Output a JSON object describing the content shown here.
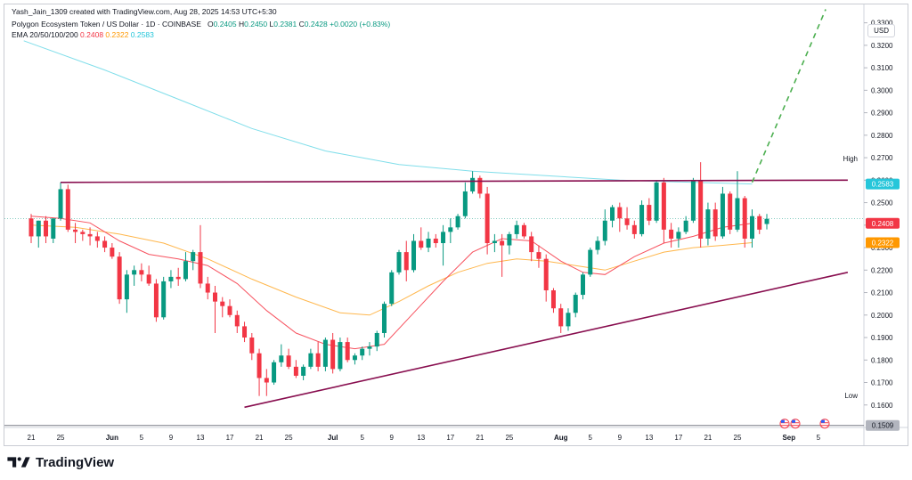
{
  "header": {
    "credit": "Yash_Jain_1309 created with TradingView.com, Aug 28, 2025 14:53 UTC+5:30",
    "symbol": "Polygon Ecosystem Token / US Dollar · 1D · COINBASE",
    "ohlc": {
      "o_label": "O",
      "o": "0.2405",
      "h_label": "H",
      "h": "0.2450",
      "l_label": "L",
      "l": "0.2381",
      "c_label": "C",
      "c": "0.2428",
      "chg": "+0.0020 (+0.83%)"
    },
    "ema_label": "EMA 20/50/100/200",
    "ema_values": [
      "0.2408",
      "0.2322",
      "0.2583"
    ]
  },
  "price_axis": {
    "currency": "USD",
    "high_label": "High",
    "low_label": "Low",
    "badges": [
      {
        "value": "0.2583",
        "color": "#26c6da"
      },
      {
        "value": "0.2408",
        "color": "#f23645"
      },
      {
        "value": "0.2322",
        "color": "#ff9800"
      },
      {
        "value": "0.1509",
        "color": "#b2b5be"
      }
    ]
  },
  "footer": {
    "brand": "TradingView"
  },
  "colors": {
    "up": "#089981",
    "down": "#f23645",
    "ema20": "#f7525f",
    "ema50": "#ffb74d",
    "ema200": "#80deea",
    "trend": "#880e4f",
    "projection": "#4caf50"
  },
  "chart_data": {
    "type": "candlestick",
    "title": "Polygon Ecosystem Token / US Dollar · 1D · COINBASE",
    "y_ticks": [
      "0.3300",
      "0.3200",
      "0.3100",
      "0.3000",
      "0.2900",
      "0.2800",
      "0.2700",
      "0.2600",
      "0.2500",
      "0.2400",
      "0.2300",
      "0.2200",
      "0.2100",
      "0.2000",
      "0.1900",
      "0.1800",
      "0.1700",
      "0.1600"
    ],
    "ylim": [
      0.15,
      0.335
    ],
    "x_ticks": [
      {
        "label": "21",
        "day": 0
      },
      {
        "label": "25",
        "day": 4
      },
      {
        "label": "Jun",
        "day": 11
      },
      {
        "label": "5",
        "day": 15
      },
      {
        "label": "9",
        "day": 19
      },
      {
        "label": "13",
        "day": 23
      },
      {
        "label": "17",
        "day": 27
      },
      {
        "label": "21",
        "day": 31
      },
      {
        "label": "25",
        "day": 35
      },
      {
        "label": "Jul",
        "day": 41
      },
      {
        "label": "5",
        "day": 45
      },
      {
        "label": "9",
        "day": 49
      },
      {
        "label": "13",
        "day": 53
      },
      {
        "label": "17",
        "day": 57
      },
      {
        "label": "21",
        "day": 61
      },
      {
        "label": "25",
        "day": 65
      },
      {
        "label": "Aug",
        "day": 72
      },
      {
        "label": "5",
        "day": 76
      },
      {
        "label": "9",
        "day": 80
      },
      {
        "label": "13",
        "day": 84
      },
      {
        "label": "17",
        "day": 88
      },
      {
        "label": "21",
        "day": 92
      },
      {
        "label": "25",
        "day": 96
      },
      {
        "label": "Sep",
        "day": 103
      },
      {
        "label": "5",
        "day": 107
      }
    ],
    "bold_ticks": [
      "Jun",
      "Jul",
      "Aug",
      "Sep"
    ],
    "candles": [
      [
        0.243,
        0.245,
        0.232,
        0.235
      ],
      [
        0.235,
        0.242,
        0.23,
        0.242
      ],
      [
        0.242,
        0.244,
        0.232,
        0.235
      ],
      [
        0.234,
        0.243,
        0.232,
        0.243
      ],
      [
        0.243,
        0.259,
        0.242,
        0.256
      ],
      [
        0.256,
        0.258,
        0.237,
        0.238
      ],
      [
        0.238,
        0.241,
        0.232,
        0.237
      ],
      [
        0.237,
        0.238,
        0.233,
        0.236
      ],
      [
        0.236,
        0.239,
        0.231,
        0.235
      ],
      [
        0.235,
        0.237,
        0.23,
        0.233
      ],
      [
        0.233,
        0.235,
        0.228,
        0.23
      ],
      [
        0.23,
        0.232,
        0.225,
        0.226
      ],
      [
        0.226,
        0.228,
        0.205,
        0.207
      ],
      [
        0.207,
        0.22,
        0.201,
        0.218
      ],
      [
        0.218,
        0.222,
        0.213,
        0.22
      ],
      [
        0.22,
        0.223,
        0.215,
        0.218
      ],
      [
        0.218,
        0.222,
        0.213,
        0.214
      ],
      [
        0.214,
        0.216,
        0.197,
        0.199
      ],
      [
        0.199,
        0.217,
        0.198,
        0.215
      ],
      [
        0.215,
        0.22,
        0.212,
        0.217
      ],
      [
        0.217,
        0.221,
        0.213,
        0.216
      ],
      [
        0.216,
        0.228,
        0.215,
        0.224
      ],
      [
        0.224,
        0.229,
        0.22,
        0.228
      ],
      [
        0.228,
        0.24,
        0.212,
        0.214
      ],
      [
        0.214,
        0.217,
        0.207,
        0.21
      ],
      [
        0.21,
        0.213,
        0.192,
        0.206
      ],
      [
        0.206,
        0.208,
        0.199,
        0.204
      ],
      [
        0.204,
        0.207,
        0.199,
        0.2
      ],
      [
        0.2,
        0.202,
        0.192,
        0.195
      ],
      [
        0.195,
        0.197,
        0.188,
        0.19
      ],
      [
        0.19,
        0.192,
        0.18,
        0.183
      ],
      [
        0.183,
        0.185,
        0.164,
        0.172
      ],
      [
        0.172,
        0.176,
        0.164,
        0.17
      ],
      [
        0.17,
        0.18,
        0.169,
        0.179
      ],
      [
        0.179,
        0.187,
        0.177,
        0.182
      ],
      [
        0.182,
        0.185,
        0.176,
        0.177
      ],
      [
        0.177,
        0.18,
        0.172,
        0.173
      ],
      [
        0.173,
        0.178,
        0.171,
        0.177
      ],
      [
        0.177,
        0.185,
        0.176,
        0.183
      ],
      [
        0.183,
        0.188,
        0.175,
        0.177
      ],
      [
        0.177,
        0.19,
        0.175,
        0.189
      ],
      [
        0.189,
        0.192,
        0.174,
        0.176
      ],
      [
        0.176,
        0.19,
        0.175,
        0.188
      ],
      [
        0.188,
        0.19,
        0.179,
        0.18
      ],
      [
        0.18,
        0.183,
        0.178,
        0.182
      ],
      [
        0.182,
        0.186,
        0.18,
        0.185
      ],
      [
        0.185,
        0.188,
        0.182,
        0.186
      ],
      [
        0.186,
        0.193,
        0.184,
        0.192
      ],
      [
        0.192,
        0.206,
        0.19,
        0.205
      ],
      [
        0.205,
        0.22,
        0.204,
        0.219
      ],
      [
        0.219,
        0.229,
        0.218,
        0.228
      ],
      [
        0.228,
        0.233,
        0.215,
        0.22
      ],
      [
        0.22,
        0.236,
        0.219,
        0.233
      ],
      [
        0.233,
        0.239,
        0.229,
        0.23
      ],
      [
        0.23,
        0.237,
        0.228,
        0.234
      ],
      [
        0.234,
        0.236,
        0.23,
        0.232
      ],
      [
        0.232,
        0.24,
        0.222,
        0.237
      ],
      [
        0.237,
        0.243,
        0.232,
        0.239
      ],
      [
        0.239,
        0.245,
        0.238,
        0.244
      ],
      [
        0.244,
        0.259,
        0.243,
        0.255
      ],
      [
        0.255,
        0.264,
        0.254,
        0.261
      ],
      [
        0.261,
        0.262,
        0.252,
        0.254
      ],
      [
        0.254,
        0.257,
        0.227,
        0.232
      ],
      [
        0.232,
        0.236,
        0.228,
        0.233
      ],
      [
        0.233,
        0.236,
        0.217,
        0.231
      ],
      [
        0.231,
        0.237,
        0.227,
        0.236
      ],
      [
        0.236,
        0.242,
        0.234,
        0.24
      ],
      [
        0.24,
        0.241,
        0.234,
        0.235
      ],
      [
        0.235,
        0.237,
        0.224,
        0.228
      ],
      [
        0.228,
        0.231,
        0.221,
        0.225
      ],
      [
        0.225,
        0.227,
        0.206,
        0.211
      ],
      [
        0.211,
        0.212,
        0.201,
        0.203
      ],
      [
        0.203,
        0.205,
        0.192,
        0.195
      ],
      [
        0.195,
        0.203,
        0.193,
        0.201
      ],
      [
        0.201,
        0.21,
        0.199,
        0.209
      ],
      [
        0.209,
        0.219,
        0.207,
        0.218
      ],
      [
        0.218,
        0.23,
        0.217,
        0.229
      ],
      [
        0.229,
        0.235,
        0.227,
        0.233
      ],
      [
        0.233,
        0.247,
        0.231,
        0.242
      ],
      [
        0.242,
        0.249,
        0.239,
        0.248
      ],
      [
        0.248,
        0.25,
        0.237,
        0.243
      ],
      [
        0.243,
        0.248,
        0.238,
        0.24
      ],
      [
        0.24,
        0.242,
        0.234,
        0.236
      ],
      [
        0.236,
        0.251,
        0.235,
        0.249
      ],
      [
        0.249,
        0.252,
        0.24,
        0.242
      ],
      [
        0.242,
        0.26,
        0.241,
        0.259
      ],
      [
        0.259,
        0.261,
        0.232,
        0.238
      ],
      [
        0.238,
        0.241,
        0.23,
        0.234
      ],
      [
        0.234,
        0.239,
        0.23,
        0.237
      ],
      [
        0.237,
        0.244,
        0.236,
        0.242
      ],
      [
        0.242,
        0.261,
        0.241,
        0.26
      ],
      [
        0.26,
        0.268,
        0.23,
        0.234
      ],
      [
        0.234,
        0.25,
        0.231,
        0.247
      ],
      [
        0.247,
        0.25,
        0.233,
        0.235
      ],
      [
        0.235,
        0.257,
        0.234,
        0.254
      ],
      [
        0.254,
        0.255,
        0.236,
        0.238
      ],
      [
        0.238,
        0.264,
        0.237,
        0.252
      ],
      [
        0.252,
        0.253,
        0.23,
        0.234
      ],
      [
        0.234,
        0.247,
        0.23,
        0.244
      ],
      [
        0.244,
        0.245,
        0.236,
        0.238
      ],
      [
        0.2405,
        0.245,
        0.2381,
        0.2428
      ]
    ],
    "ema20": [
      [
        0,
        0.244
      ],
      [
        4,
        0.243
      ],
      [
        8,
        0.241
      ],
      [
        12,
        0.233
      ],
      [
        16,
        0.227
      ],
      [
        20,
        0.225
      ],
      [
        24,
        0.222
      ],
      [
        28,
        0.214
      ],
      [
        32,
        0.202
      ],
      [
        36,
        0.192
      ],
      [
        40,
        0.187
      ],
      [
        44,
        0.185
      ],
      [
        48,
        0.187
      ],
      [
        52,
        0.201
      ],
      [
        56,
        0.215
      ],
      [
        60,
        0.228
      ],
      [
        64,
        0.234
      ],
      [
        68,
        0.233
      ],
      [
        72,
        0.224
      ],
      [
        75,
        0.219
      ],
      [
        78,
        0.218
      ],
      [
        82,
        0.226
      ],
      [
        86,
        0.232
      ],
      [
        90,
        0.235
      ],
      [
        94,
        0.239
      ],
      [
        98,
        0.2408
      ]
    ],
    "ema50": [
      [
        0,
        0.24
      ],
      [
        6,
        0.239
      ],
      [
        12,
        0.236
      ],
      [
        18,
        0.232
      ],
      [
        24,
        0.225
      ],
      [
        30,
        0.216
      ],
      [
        36,
        0.208
      ],
      [
        42,
        0.201
      ],
      [
        46,
        0.2
      ],
      [
        50,
        0.206
      ],
      [
        54,
        0.213
      ],
      [
        58,
        0.219
      ],
      [
        62,
        0.223
      ],
      [
        66,
        0.225
      ],
      [
        70,
        0.224
      ],
      [
        74,
        0.222
      ],
      [
        78,
        0.22
      ],
      [
        82,
        0.224
      ],
      [
        86,
        0.228
      ],
      [
        90,
        0.23
      ],
      [
        94,
        0.231
      ],
      [
        98,
        0.2322
      ]
    ],
    "ema200": [
      [
        -1,
        0.322
      ],
      [
        10,
        0.309
      ],
      [
        20,
        0.296
      ],
      [
        30,
        0.283
      ],
      [
        40,
        0.273
      ],
      [
        50,
        0.267
      ],
      [
        60,
        0.264
      ],
      [
        70,
        0.262
      ],
      [
        80,
        0.26
      ],
      [
        90,
        0.259
      ],
      [
        98,
        0.2583
      ]
    ],
    "resistance_line": [
      [
        4,
        0.259
      ],
      [
        111,
        0.26
      ]
    ],
    "support_line": [
      [
        29,
        0.159
      ],
      [
        111,
        0.219
      ]
    ],
    "projection_line": [
      [
        98,
        0.259
      ],
      [
        108,
        0.336
      ]
    ]
  }
}
